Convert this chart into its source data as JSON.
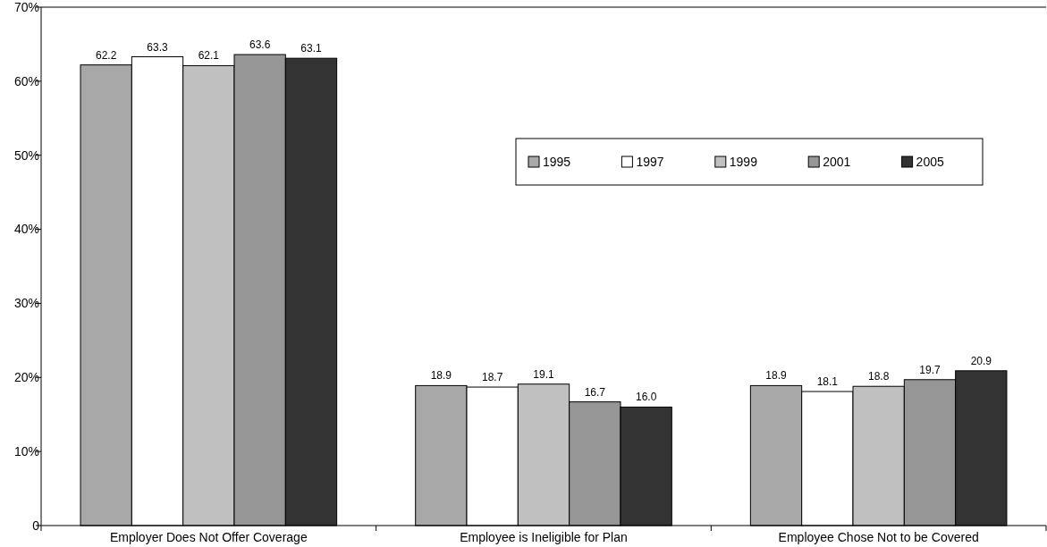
{
  "chart_data": {
    "type": "bar",
    "categories": [
      "Employer Does Not Offer Coverage",
      "Employee is Ineligible for Plan",
      "Employee Chose Not to be Covered"
    ],
    "series": [
      {
        "name": "1995",
        "color": "#a8a8a8",
        "values": [
          62.2,
          18.9,
          18.9
        ],
        "value_labels": [
          "62.2",
          "18.9",
          "18.9"
        ]
      },
      {
        "name": "1997",
        "color": "#ffffff",
        "values": [
          63.3,
          18.7,
          18.1
        ],
        "value_labels": [
          "63.3",
          "18.7",
          "18.1"
        ]
      },
      {
        "name": "1999",
        "color": "#c0c0c0",
        "values": [
          62.1,
          19.1,
          18.8
        ],
        "value_labels": [
          "62.1",
          "19.1",
          "18.8"
        ]
      },
      {
        "name": "2001",
        "color": "#969696",
        "values": [
          63.6,
          16.7,
          19.7
        ],
        "value_labels": [
          "63.6",
          "16.7",
          "19.7"
        ]
      },
      {
        "name": "2005",
        "color": "#333333",
        "values": [
          63.1,
          16.0,
          20.9
        ],
        "value_labels": [
          "63.1",
          "16.0",
          "20.9"
        ]
      }
    ],
    "ylim": [
      0,
      70
    ],
    "yticks": [
      {
        "value": 0,
        "label": "0"
      },
      {
        "value": 10,
        "label": "10%"
      },
      {
        "value": 20,
        "label": "20%"
      },
      {
        "value": 30,
        "label": "30%"
      },
      {
        "value": 40,
        "label": "40%"
      },
      {
        "value": 50,
        "label": "50%"
      },
      {
        "value": 60,
        "label": "60%"
      },
      {
        "value": 70,
        "label": "70%"
      }
    ],
    "legend": "top right",
    "grid": false
  }
}
